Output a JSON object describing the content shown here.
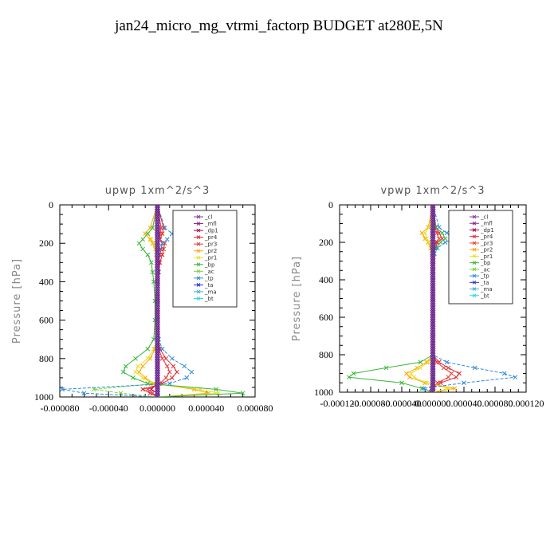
{
  "title": "jan24_micro_mg_vtrmi_factorp  BUDGET at280E,5N",
  "legend_entries": [
    {
      "label": "_cl",
      "color": "#7b3fa0"
    },
    {
      "label": "_mfl",
      "color": "#8a1f8a"
    },
    {
      "label": "_dp1",
      "color": "#b0004a"
    },
    {
      "label": "_pr4",
      "color": "#e0262e"
    },
    {
      "label": "_pr3",
      "color": "#e83a3a"
    },
    {
      "label": "_pr2",
      "color": "#ffa500"
    },
    {
      "label": "_pr1",
      "color": "#e8e02a"
    },
    {
      "label": "_bp",
      "color": "#38b838"
    },
    {
      "label": "_ac",
      "color": "#7ad03a"
    },
    {
      "label": "_tp",
      "color": "#2a8ae0"
    },
    {
      "label": "_ta",
      "color": "#2a2ad0"
    },
    {
      "label": "_ma",
      "color": "#3ab0d0"
    },
    {
      "label": "_bt",
      "color": "#2ad8e8"
    }
  ],
  "chart_data": [
    {
      "type": "line",
      "title": "upwp   1xm^2/s^3",
      "ylabel": "Pressure [hPa]",
      "xlabel": "",
      "ylim": [
        1000,
        0
      ],
      "xlim": [
        -8e-05,
        8e-05
      ],
      "xticks": [
        "-0.000080",
        "-0.000040",
        "0.000000",
        "0.000040",
        "0.000080"
      ],
      "yticks": [
        "0",
        "200",
        "400",
        "600",
        "800",
        "1000"
      ],
      "pressure": [
        0,
        120,
        150,
        180,
        200,
        230,
        260,
        300,
        350,
        400,
        500,
        600,
        700,
        750,
        800,
        840,
        870,
        900,
        930,
        960,
        980,
        1000
      ],
      "series": [
        {
          "name": "_cl",
          "values": [
            0,
            0,
            0,
            0,
            0,
            0,
            0,
            0,
            0,
            0,
            0,
            0,
            0,
            0,
            0,
            0,
            0,
            0,
            0,
            0,
            0,
            0
          ]
        },
        {
          "name": "_mfl",
          "values": [
            0,
            0,
            0,
            0,
            0,
            0,
            0,
            0,
            0,
            0,
            0,
            0,
            0,
            0,
            0,
            0,
            0,
            0,
            0,
            0,
            0,
            0
          ]
        },
        {
          "name": "_dp1",
          "values": [
            0,
            0,
            0,
            0,
            0,
            0,
            0,
            0,
            0,
            0,
            0,
            0,
            0,
            0,
            0,
            0,
            0,
            0,
            0,
            -5e-06,
            0,
            0
          ]
        },
        {
          "name": "_pr4",
          "values": [
            0,
            5e-06,
            4e-06,
            2e-06,
            6e-06,
            5e-06,
            4e-06,
            2e-06,
            1e-06,
            0,
            0,
            0,
            0,
            2e-06,
            7e-06,
            1.3e-05,
            1.6e-05,
            1.2e-05,
            4e-06,
            -1.2e-05,
            -6e-06,
            0
          ]
        },
        {
          "name": "_pr3",
          "values": [
            0,
            3e-06,
            2e-06,
            2e-06,
            4e-06,
            3e-06,
            2e-06,
            1e-06,
            0,
            0,
            0,
            0,
            0,
            1e-06,
            4e-06,
            8e-06,
            1e-05,
            7e-06,
            2e-06,
            -8e-06,
            -4e-06,
            0
          ]
        },
        {
          "name": "_pr2",
          "values": [
            0,
            -6e-06,
            -1e-05,
            -6e-06,
            -4e-06,
            -2e-06,
            -1e-06,
            0,
            0,
            0,
            0,
            0,
            0,
            -2e-06,
            -6e-06,
            -1.2e-05,
            -1.5e-05,
            -1e-05,
            -3e-06,
            3e-05,
            4.2e-05,
            0
          ]
        },
        {
          "name": "_pr1",
          "values": [
            0,
            -4e-06,
            -8e-06,
            -5e-06,
            -3e-06,
            -2e-06,
            -1e-06,
            0,
            0,
            0,
            0,
            0,
            0,
            -3e-06,
            -8e-06,
            -1.6e-05,
            -1.8e-05,
            -1.2e-05,
            -4e-06,
            3.5e-05,
            5e-05,
            0
          ]
        },
        {
          "name": "_bp",
          "values": [
            0,
            -4e-06,
            -8e-06,
            -1.2e-05,
            -1.5e-05,
            -1.2e-05,
            -8e-06,
            -5e-06,
            -4e-06,
            -3e-06,
            -2e-06,
            -2e-06,
            -3e-06,
            -8e-06,
            -1.8e-05,
            -2.6e-05,
            -2.8e-05,
            -2e-05,
            -8e-06,
            4.8e-05,
            7e-05,
            0
          ]
        },
        {
          "name": "_ac",
          "values": [
            0,
            0,
            0,
            0,
            0,
            0,
            0,
            0,
            0,
            0,
            0,
            0,
            0,
            0,
            0,
            0,
            0,
            0,
            0,
            -5.2e-05,
            -3e-05,
            0
          ]
        },
        {
          "name": "_tp",
          "values": [
            0,
            6e-06,
            1.2e-05,
            8e-06,
            4e-06,
            2e-06,
            1e-06,
            0,
            0,
            0,
            0,
            0,
            1e-06,
            4e-06,
            1.2e-05,
            2.2e-05,
            2.8e-05,
            2.4e-05,
            1e-05,
            -7.8e-05,
            -6e-05,
            0
          ]
        },
        {
          "name": "_ta",
          "values": [
            0,
            0,
            0,
            0,
            0,
            0,
            0,
            0,
            0,
            0,
            0,
            0,
            0,
            0,
            0,
            0,
            0,
            0,
            0,
            0,
            0,
            0
          ]
        },
        {
          "name": "_ma",
          "values": [
            0,
            0,
            0,
            0,
            0,
            0,
            0,
            0,
            0,
            0,
            0,
            0,
            0,
            0,
            0,
            0,
            0,
            0,
            0,
            0,
            0,
            0
          ]
        },
        {
          "name": "_bt",
          "values": [
            0,
            0,
            0,
            0,
            0,
            0,
            0,
            0,
            0,
            0,
            0,
            0,
            0,
            0,
            0,
            0,
            0,
            0,
            0,
            0,
            0,
            0
          ]
        }
      ]
    },
    {
      "type": "line",
      "title": "vpwp   1xm^2/s^3",
      "ylabel": "Pressure [hPa]",
      "xlabel": "",
      "ylim": [
        1000,
        0
      ],
      "xlim": [
        -0.00012,
        0.00012
      ],
      "xticks": [
        "-0.000120",
        "-0.000080",
        "-0.000040",
        "0.000000",
        "0.000040",
        "0.000080",
        "0.000120"
      ],
      "yticks": [
        "0",
        "200",
        "400",
        "600",
        "800",
        "1000"
      ],
      "pressure": [
        0,
        120,
        150,
        180,
        200,
        230,
        260,
        300,
        350,
        400,
        500,
        600,
        700,
        800,
        840,
        870,
        900,
        920,
        950,
        980,
        1000
      ],
      "series": [
        {
          "name": "_cl",
          "values": [
            0,
            0,
            0,
            0,
            0,
            0,
            0,
            0,
            0,
            0,
            0,
            0,
            0,
            0,
            0,
            0,
            0,
            0,
            0,
            0,
            0
          ]
        },
        {
          "name": "_mfl",
          "values": [
            0,
            0,
            0,
            0,
            0,
            0,
            0,
            0,
            0,
            0,
            0,
            0,
            0,
            0,
            0,
            0,
            0,
            0,
            0,
            0,
            0
          ]
        },
        {
          "name": "_dp1",
          "values": [
            0,
            0,
            0,
            0,
            0,
            0,
            0,
            0,
            0,
            0,
            0,
            0,
            0,
            0,
            0,
            0,
            0,
            0,
            0,
            0,
            0
          ]
        },
        {
          "name": "_pr4",
          "values": [
            0,
            4e-06,
            8e-06,
            1.2e-05,
            6e-06,
            3e-06,
            1e-06,
            0,
            0,
            0,
            0,
            0,
            0,
            0,
            8e-06,
            2e-05,
            3.4e-05,
            3e-05,
            1e-05,
            -2e-06,
            0
          ]
        },
        {
          "name": "_pr3",
          "values": [
            0,
            3e-06,
            5e-06,
            8e-06,
            4e-06,
            2e-06,
            1e-06,
            0,
            0,
            0,
            0,
            0,
            0,
            0,
            5e-06,
            1.4e-05,
            2.4e-05,
            2e-05,
            6e-06,
            -1e-06,
            0
          ]
        },
        {
          "name": "_pr2",
          "values": [
            0,
            -6e-06,
            -1.4e-05,
            -1e-05,
            -6e-06,
            -3e-06,
            -1e-06,
            0,
            0,
            0,
            0,
            0,
            0,
            0,
            -8e-06,
            -2e-05,
            -3.4e-05,
            -3e-05,
            -1e-05,
            2.8e-05,
            0
          ]
        },
        {
          "name": "_pr1",
          "values": [
            0,
            -5e-06,
            -1e-05,
            -8e-06,
            -5e-06,
            -2e-06,
            -1e-06,
            0,
            0,
            0,
            0,
            0,
            0,
            0,
            -6e-06,
            -1.6e-05,
            -2.8e-05,
            -2.4e-05,
            -8e-06,
            2e-05,
            0
          ]
        },
        {
          "name": "_bp",
          "values": [
            0,
            4e-06,
            1.2e-05,
            1.6e-05,
            1e-05,
            4e-06,
            1e-06,
            0,
            0,
            0,
            0,
            0,
            0,
            0,
            -1.6e-05,
            -6e-05,
            -0.000102,
            -0.000108,
            -4e-05,
            -1.4e-05,
            0
          ]
        },
        {
          "name": "_ac",
          "values": [
            0,
            0,
            0,
            0,
            0,
            0,
            0,
            0,
            0,
            0,
            0,
            0,
            0,
            0,
            0,
            0,
            0,
            0,
            0,
            0,
            0
          ]
        },
        {
          "name": "_tp",
          "values": [
            0,
            8e-06,
            1.8e-05,
            2.8e-05,
            1.6e-05,
            6e-06,
            2e-06,
            0,
            0,
            0,
            0,
            0,
            0,
            0,
            1.8e-05,
            5.4e-05,
            9.2e-05,
            0.000106,
            4e-05,
            -1.2e-05,
            0
          ]
        },
        {
          "name": "_ta",
          "values": [
            0,
            0,
            0,
            0,
            0,
            0,
            0,
            0,
            0,
            0,
            0,
            0,
            0,
            0,
            0,
            0,
            0,
            0,
            0,
            0,
            0
          ]
        },
        {
          "name": "_ma",
          "values": [
            0,
            0,
            0,
            0,
            0,
            0,
            0,
            0,
            0,
            0,
            0,
            0,
            0,
            0,
            0,
            0,
            0,
            0,
            0,
            0,
            0
          ]
        },
        {
          "name": "_bt",
          "values": [
            0,
            0,
            0,
            0,
            0,
            0,
            0,
            0,
            0,
            0,
            0,
            0,
            0,
            0,
            0,
            0,
            0,
            0,
            0,
            0,
            0
          ]
        }
      ]
    }
  ]
}
